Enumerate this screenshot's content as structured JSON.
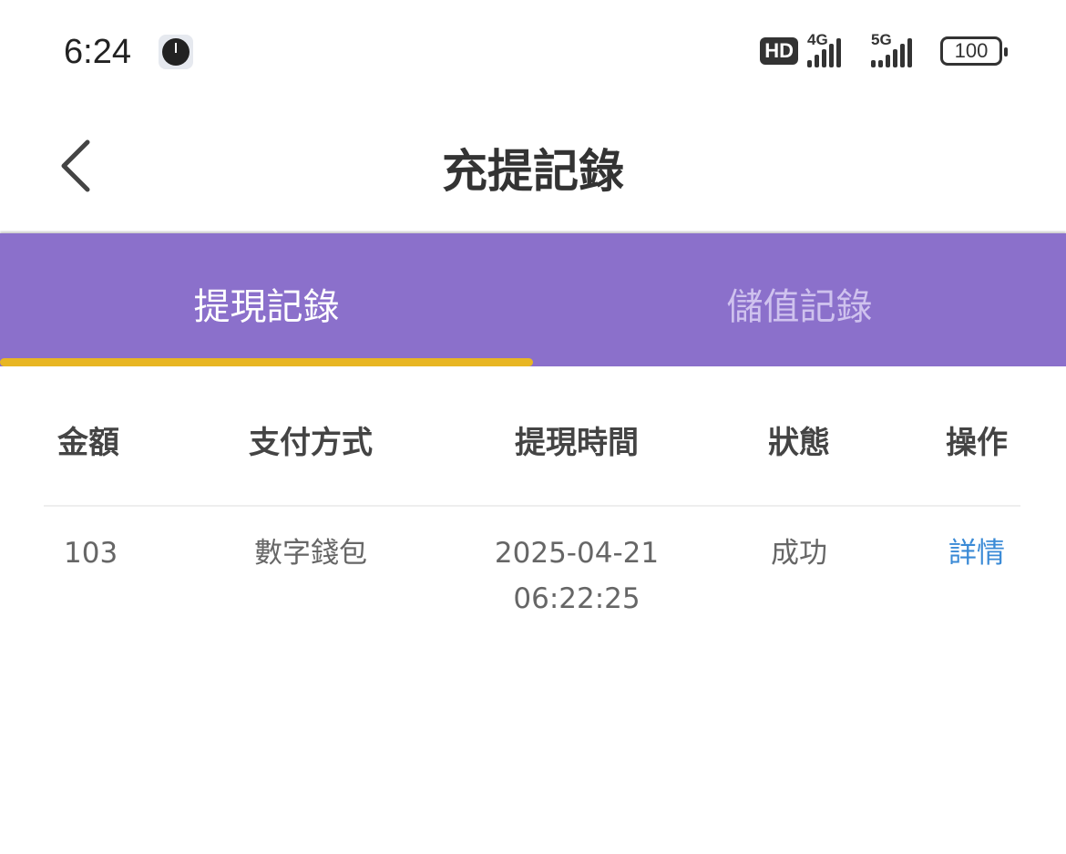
{
  "status_bar": {
    "time": "6:24",
    "hd": "HD",
    "net1": "4G",
    "net2": "5G",
    "battery": "100"
  },
  "header": {
    "title": "充提記錄"
  },
  "tabs": [
    {
      "label": "提現記錄",
      "active": true
    },
    {
      "label": "儲值記錄",
      "active": false
    }
  ],
  "colors": {
    "tab_bg": "#8b70cb",
    "indicator": "#e8b623",
    "link": "#3a8ad6"
  },
  "table": {
    "columns": [
      "金額",
      "支付方式",
      "提現時間",
      "狀態",
      "操作"
    ],
    "rows": [
      {
        "amount": "103",
        "method": "數字錢包",
        "date": "2025-04-21",
        "time": "06:22:25",
        "status": "成功",
        "action": "詳情"
      }
    ]
  }
}
